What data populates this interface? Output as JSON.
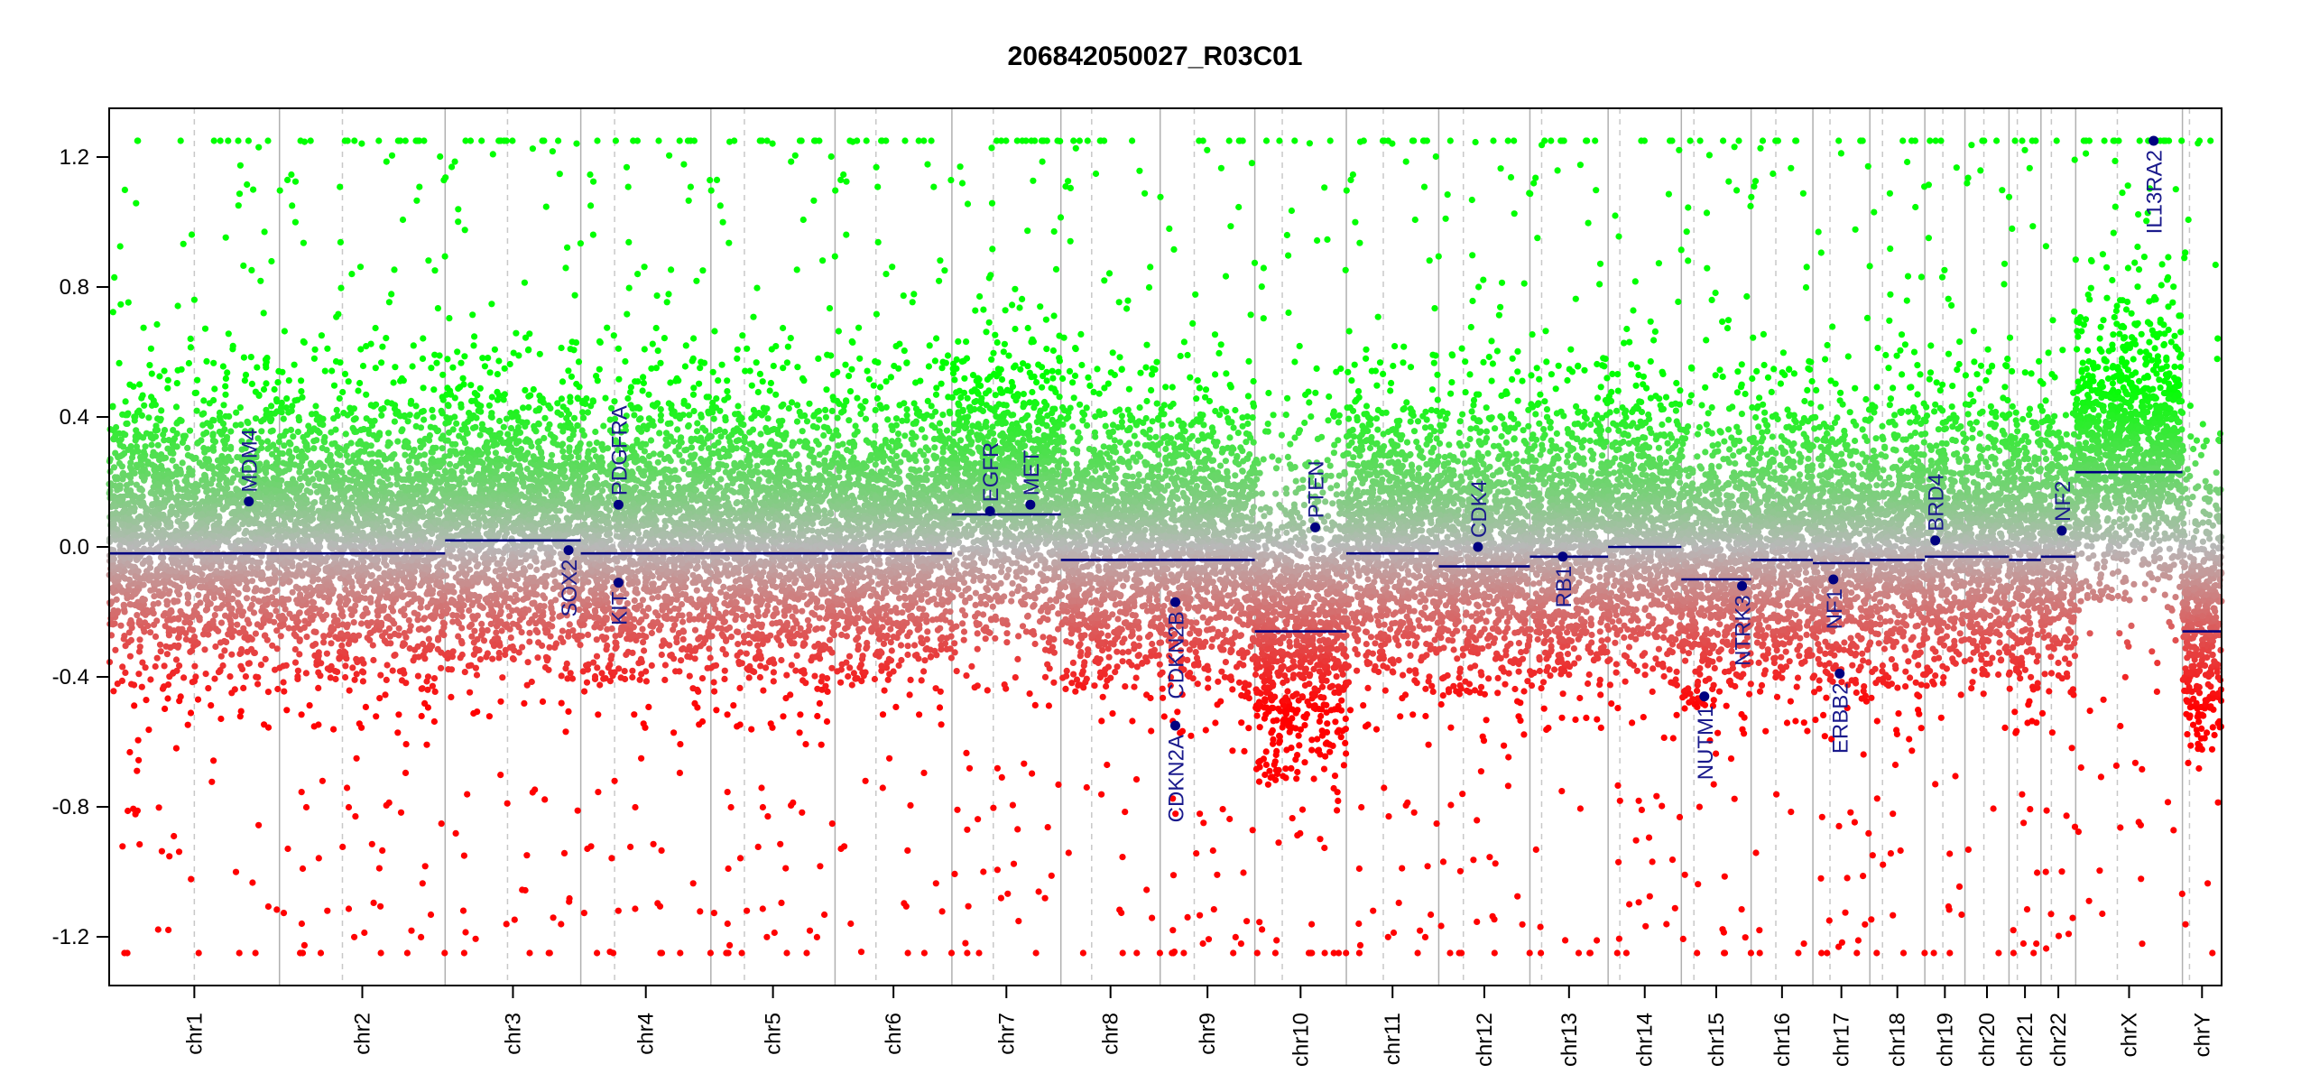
{
  "chart_data": {
    "type": "scatter",
    "title": "206842050027_R03C01",
    "xlabel": "",
    "ylabel": "",
    "ylim": [
      -1.35,
      1.35
    ],
    "clip_value": 1.25,
    "y_ticks": [
      -1.2,
      -0.8,
      -0.4,
      0.0,
      0.4,
      0.8,
      1.2
    ],
    "y_tick_labels": [
      "-1.2",
      "-0.8",
      "-0.4",
      "0.0",
      "0.4",
      "0.8",
      "1.2"
    ],
    "chromosomes": [
      {
        "name": "chr1",
        "length": 248.96,
        "centromere": 0.5
      },
      {
        "name": "chr2",
        "length": 242.19,
        "centromere": 0.38
      },
      {
        "name": "chr3",
        "length": 198.3,
        "centromere": 0.46
      },
      {
        "name": "chr4",
        "length": 190.21,
        "centromere": 0.26
      },
      {
        "name": "chr5",
        "length": 181.54,
        "centromere": 0.27
      },
      {
        "name": "chr6",
        "length": 170.81,
        "centromere": 0.35
      },
      {
        "name": "chr7",
        "length": 159.35,
        "centromere": 0.38
      },
      {
        "name": "chr8",
        "length": 145.14,
        "centromere": 0.31
      },
      {
        "name": "chr9",
        "length": 138.39,
        "centromere": 0.36
      },
      {
        "name": "chr10",
        "length": 133.8,
        "centromere": 0.3
      },
      {
        "name": "chr11",
        "length": 135.09,
        "centromere": 0.4
      },
      {
        "name": "chr12",
        "length": 133.28,
        "centromere": 0.27
      },
      {
        "name": "chr13",
        "length": 114.36,
        "centromere": 0.15
      },
      {
        "name": "chr14",
        "length": 107.04,
        "centromere": 0.16
      },
      {
        "name": "chr15",
        "length": 101.99,
        "centromere": 0.18
      },
      {
        "name": "chr16",
        "length": 90.34,
        "centromere": 0.4
      },
      {
        "name": "chr17",
        "length": 83.26,
        "centromere": 0.3
      },
      {
        "name": "chr18",
        "length": 80.37,
        "centromere": 0.23
      },
      {
        "name": "chr19",
        "length": 58.62,
        "centromere": 0.45
      },
      {
        "name": "chr20",
        "length": 64.44,
        "centromere": 0.43
      },
      {
        "name": "chr21",
        "length": 46.71,
        "centromere": 0.26
      },
      {
        "name": "chr22",
        "length": 50.82,
        "centromere": 0.3
      },
      {
        "name": "chrX",
        "length": 156.04,
        "centromere": 0.39
      },
      {
        "name": "chrY",
        "length": 57.23,
        "centromere": 0.18
      }
    ],
    "segments": [
      {
        "chrom": "chr1",
        "start": 0.0,
        "end": 1.0,
        "value": -0.02
      },
      {
        "chrom": "chr2",
        "start": 0.0,
        "end": 1.0,
        "value": -0.02
      },
      {
        "chrom": "chr3",
        "start": 0.0,
        "end": 1.0,
        "value": 0.02
      },
      {
        "chrom": "chr4",
        "start": 0.0,
        "end": 1.0,
        "value": -0.02
      },
      {
        "chrom": "chr5",
        "start": 0.0,
        "end": 1.0,
        "value": -0.02
      },
      {
        "chrom": "chr6",
        "start": 0.0,
        "end": 1.0,
        "value": -0.02
      },
      {
        "chrom": "chr7",
        "start": 0.0,
        "end": 1.0,
        "value": 0.1
      },
      {
        "chrom": "chr8",
        "start": 0.0,
        "end": 1.0,
        "value": -0.04
      },
      {
        "chrom": "chr9",
        "start": 0.0,
        "end": 1.0,
        "value": -0.04
      },
      {
        "chrom": "chr10",
        "start": 0.0,
        "end": 1.0,
        "value": -0.26
      },
      {
        "chrom": "chr11",
        "start": 0.0,
        "end": 1.0,
        "value": -0.02
      },
      {
        "chrom": "chr12",
        "start": 0.0,
        "end": 1.0,
        "value": -0.06
      },
      {
        "chrom": "chr13",
        "start": 0.0,
        "end": 1.0,
        "value": -0.03
      },
      {
        "chrom": "chr14",
        "start": 0.0,
        "end": 1.0,
        "value": 0.0
      },
      {
        "chrom": "chr15",
        "start": 0.0,
        "end": 1.0,
        "value": -0.1
      },
      {
        "chrom": "chr16",
        "start": 0.0,
        "end": 1.0,
        "value": -0.04
      },
      {
        "chrom": "chr17",
        "start": 0.0,
        "end": 1.0,
        "value": -0.05
      },
      {
        "chrom": "chr18",
        "start": 0.0,
        "end": 1.0,
        "value": -0.04
      },
      {
        "chrom": "chr19",
        "start": 0.0,
        "end": 1.0,
        "value": -0.03
      },
      {
        "chrom": "chr20",
        "start": 0.0,
        "end": 1.0,
        "value": -0.03
      },
      {
        "chrom": "chr21",
        "start": 0.0,
        "end": 1.0,
        "value": -0.04
      },
      {
        "chrom": "chr22",
        "start": 0.0,
        "end": 1.0,
        "value": -0.03
      },
      {
        "chrom": "chrX",
        "start": 0.0,
        "end": 1.0,
        "value": 0.23
      },
      {
        "chrom": "chrY",
        "start": 0.0,
        "end": 1.0,
        "value": -0.26
      }
    ],
    "genes": [
      {
        "name": "MDM4",
        "chrom": "chr1",
        "pos": 0.82,
        "value": 0.14,
        "label_side": "above"
      },
      {
        "name": "SOX2",
        "chrom": "chr3",
        "pos": 0.91,
        "value": -0.01,
        "label_side": "below"
      },
      {
        "name": "PDGFRA",
        "chrom": "chr4",
        "pos": 0.29,
        "value": 0.13,
        "label_side": "above"
      },
      {
        "name": "KIT",
        "chrom": "chr4",
        "pos": 0.29,
        "value": -0.11,
        "label_side": "below"
      },
      {
        "name": "EGFR",
        "chrom": "chr7",
        "pos": 0.35,
        "value": 0.11,
        "label_side": "above"
      },
      {
        "name": "MET",
        "chrom": "chr7",
        "pos": 0.72,
        "value": 0.13,
        "label_side": "above"
      },
      {
        "name": "CDKN2B",
        "chrom": "chr9",
        "pos": 0.16,
        "value": -0.17,
        "label_side": "below"
      },
      {
        "name": "CDKN2A",
        "chrom": "chr9",
        "pos": 0.16,
        "value": -0.55,
        "label_side": "below"
      },
      {
        "name": "PTEN",
        "chrom": "chr10",
        "pos": 0.66,
        "value": 0.06,
        "label_side": "above"
      },
      {
        "name": "CDK4",
        "chrom": "chr12",
        "pos": 0.43,
        "value": 0.0,
        "label_side": "above"
      },
      {
        "name": "RB1",
        "chrom": "chr13",
        "pos": 0.42,
        "value": -0.03,
        "label_side": "below"
      },
      {
        "name": "NUTM1",
        "chrom": "chr15",
        "pos": 0.33,
        "value": -0.46,
        "label_side": "below"
      },
      {
        "name": "NTRK3",
        "chrom": "chr15",
        "pos": 0.87,
        "value": -0.12,
        "label_side": "below"
      },
      {
        "name": "NF1",
        "chrom": "chr17",
        "pos": 0.36,
        "value": -0.1,
        "label_side": "below"
      },
      {
        "name": "ERBB2",
        "chrom": "chr17",
        "pos": 0.47,
        "value": -0.39,
        "label_side": "below"
      },
      {
        "name": "BRD4",
        "chrom": "chr19",
        "pos": 0.26,
        "value": 0.02,
        "label_side": "above"
      },
      {
        "name": "NF2",
        "chrom": "chr22",
        "pos": 0.6,
        "value": 0.05,
        "label_side": "above"
      },
      {
        "name": "IL13RA2",
        "chrom": "chrX",
        "pos": 0.73,
        "value": 1.25,
        "label_side": "below"
      }
    ],
    "points_per_mb": 8.2,
    "grid": false,
    "legend": "none"
  },
  "colors": {
    "background": "#ffffff",
    "axis": "#000000",
    "gain_high": "#00ff00",
    "gain_low": "#b8b8b8",
    "loss_high": "#ff0000",
    "segment": "#000080",
    "gene_marker": "#000080",
    "gene_label": "#1a1a8c",
    "chrom_border": "#b0b0b0",
    "centromere_line": "#c8c8c8"
  }
}
